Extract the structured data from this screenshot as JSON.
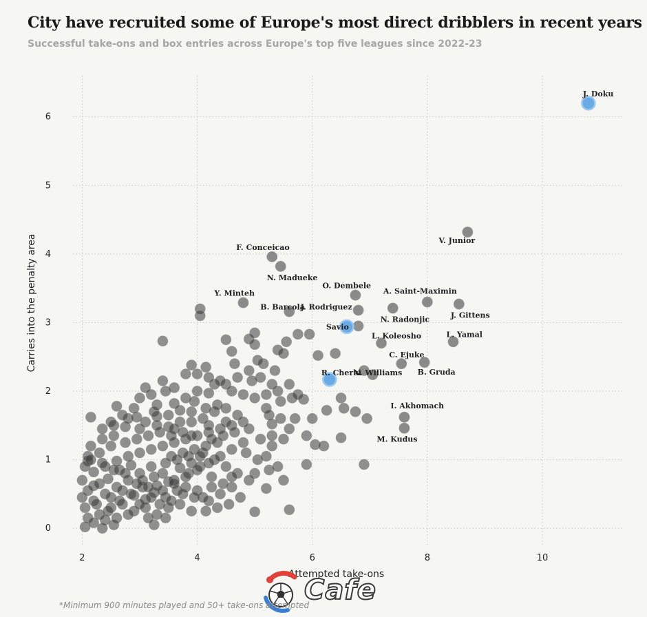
{
  "chart_data": {
    "type": "scatter",
    "title": "City have recruited some of Europe's most direct dribblers in recent years",
    "subtitle": "Successful take-ons and box entries across Europe's top five leagues since 2022-23",
    "xlabel": "Attempted take-ons",
    "ylabel": "Carries into the penalty area",
    "xlim": [
      1.6,
      11.4
    ],
    "ylim": [
      -0.25,
      6.6
    ],
    "x_ticks": [
      "2",
      "4",
      "6",
      "8",
      "10"
    ],
    "x_tick_values": [
      2,
      4,
      6,
      8,
      10
    ],
    "y_ticks": [
      "0",
      "1",
      "2",
      "3",
      "4",
      "5",
      "6"
    ],
    "y_tick_values": [
      0,
      1,
      2,
      3,
      4,
      5,
      6
    ],
    "grid": "dotted",
    "highlight_color": "#5aa3e3",
    "point_color": "#3a3a3a",
    "labeled_points": [
      {
        "name": "J. Doku",
        "x": 10.8,
        "y": 6.2,
        "highlight": true
      },
      {
        "name": "V. Junior",
        "x": 8.7,
        "y": 4.32,
        "highlight": false
      },
      {
        "name": "F. Conceicao",
        "x": 5.3,
        "y": 3.96,
        "highlight": false
      },
      {
        "name": "N. Madueke",
        "x": 5.45,
        "y": 3.82,
        "highlight": false
      },
      {
        "name": "O. Dembele",
        "x": 6.75,
        "y": 3.4,
        "highlight": false
      },
      {
        "name": "A. Saint-Maximin",
        "x": 8.0,
        "y": 3.3,
        "highlight": false
      },
      {
        "name": "Y. Minteh",
        "x": 4.8,
        "y": 3.29,
        "highlight": false
      },
      {
        "name": "B. Barcola",
        "x": 5.6,
        "y": 3.16,
        "highlight": false
      },
      {
        "name": "J. Gittens",
        "x": 8.55,
        "y": 3.27,
        "highlight": false
      },
      {
        "name": "N. Radonjic",
        "x": 7.4,
        "y": 3.21,
        "highlight": false
      },
      {
        "name": "J. Rodriguez",
        "x": 6.8,
        "y": 3.18,
        "highlight": false
      },
      {
        "name": "Savio",
        "x": 6.6,
        "y": 2.94,
        "highlight": true
      },
      {
        "name": "L. Koleosho",
        "x": 7.2,
        "y": 2.7,
        "highlight": false
      },
      {
        "name": "L. Yamal",
        "x": 8.45,
        "y": 2.72,
        "highlight": false
      },
      {
        "name": "C. Ejuke",
        "x": 7.55,
        "y": 2.4,
        "highlight": false
      },
      {
        "name": "B. Gruda",
        "x": 7.95,
        "y": 2.42,
        "highlight": false
      },
      {
        "name": "R. Cherki",
        "x": 6.3,
        "y": 2.17,
        "highlight": true
      },
      {
        "name": "N. Williams",
        "x": 7.05,
        "y": 2.24,
        "highlight": false
      },
      {
        "name": "I. Akhomach",
        "x": 7.6,
        "y": 1.62,
        "highlight": false
      },
      {
        "name": "M. Kudus",
        "x": 7.6,
        "y": 1.46,
        "highlight": false
      }
    ],
    "other_points": [
      [
        4.05,
        3.2
      ],
      [
        4.05,
        3.1
      ],
      [
        3.4,
        2.73
      ],
      [
        5.0,
        2.85
      ],
      [
        4.5,
        2.75
      ],
      [
        5.4,
        2.6
      ],
      [
        4.9,
        2.76
      ],
      [
        5.15,
        2.4
      ],
      [
        4.65,
        2.4
      ],
      [
        4.15,
        2.35
      ],
      [
        3.9,
        2.38
      ],
      [
        4.6,
        2.58
      ],
      [
        5.0,
        2.68
      ],
      [
        5.55,
        2.72
      ],
      [
        5.75,
        2.83
      ],
      [
        5.95,
        2.83
      ],
      [
        5.05,
        2.45
      ],
      [
        5.5,
        2.55
      ],
      [
        6.1,
        2.52
      ],
      [
        6.4,
        2.55
      ],
      [
        6.8,
        2.95
      ],
      [
        6.9,
        2.3
      ],
      [
        6.55,
        1.75
      ],
      [
        6.0,
        1.6
      ],
      [
        6.25,
        1.72
      ],
      [
        6.5,
        1.9
      ],
      [
        6.75,
        1.7
      ],
      [
        6.05,
        1.22
      ],
      [
        6.2,
        1.2
      ],
      [
        6.5,
        1.32
      ],
      [
        6.95,
        1.6
      ],
      [
        6.9,
        0.93
      ],
      [
        5.9,
        0.93
      ],
      [
        5.85,
        1.88
      ],
      [
        5.9,
        1.35
      ],
      [
        5.7,
        1.6
      ],
      [
        5.6,
        1.45
      ],
      [
        5.45,
        1.85
      ],
      [
        5.2,
        1.75
      ],
      [
        5.3,
        1.52
      ],
      [
        5.5,
        1.3
      ],
      [
        5.3,
        1.2
      ],
      [
        5.2,
        1.05
      ],
      [
        5.4,
        0.9
      ],
      [
        5.5,
        0.7
      ],
      [
        5.2,
        0.58
      ],
      [
        5.0,
        0.8
      ],
      [
        5.0,
        0.24
      ],
      [
        5.6,
        0.27
      ],
      [
        4.9,
        2.3
      ],
      [
        4.7,
        2.2
      ],
      [
        4.5,
        2.1
      ],
      [
        4.3,
        2.1
      ],
      [
        4.2,
        1.97
      ],
      [
        4.0,
        2.0
      ],
      [
        3.8,
        1.9
      ],
      [
        3.6,
        1.82
      ],
      [
        3.9,
        1.7
      ],
      [
        3.7,
        1.55
      ],
      [
        3.5,
        1.48
      ],
      [
        3.3,
        1.63
      ],
      [
        3.1,
        1.55
      ],
      [
        2.95,
        1.62
      ],
      [
        2.75,
        1.48
      ],
      [
        2.55,
        1.5
      ],
      [
        2.35,
        1.45
      ],
      [
        2.15,
        1.62
      ],
      [
        2.5,
        1.2
      ],
      [
        2.3,
        1.1
      ],
      [
        2.1,
        0.98
      ],
      [
        2.2,
        0.82
      ],
      [
        2.4,
        0.9
      ],
      [
        2.6,
        0.98
      ],
      [
        2.8,
        1.05
      ],
      [
        3.0,
        1.1
      ],
      [
        3.2,
        1.15
      ],
      [
        3.4,
        1.2
      ],
      [
        3.6,
        1.25
      ],
      [
        3.8,
        1.3
      ],
      [
        4.0,
        1.35
      ],
      [
        4.2,
        1.4
      ],
      [
        4.4,
        1.45
      ],
      [
        4.6,
        1.5
      ],
      [
        4.8,
        1.55
      ],
      [
        4.1,
        1.1
      ],
      [
        4.3,
        1.0
      ],
      [
        4.5,
        0.9
      ],
      [
        4.7,
        0.8
      ],
      [
        4.9,
        0.7
      ],
      [
        4.6,
        0.6
      ],
      [
        4.4,
        0.5
      ],
      [
        4.2,
        0.4
      ],
      [
        4.0,
        0.55
      ],
      [
        3.8,
        0.6
      ],
      [
        3.6,
        0.7
      ],
      [
        3.4,
        0.8
      ],
      [
        3.2,
        0.9
      ],
      [
        3.0,
        0.8
      ],
      [
        2.8,
        0.7
      ],
      [
        2.6,
        0.6
      ],
      [
        2.4,
        0.5
      ],
      [
        2.2,
        0.4
      ],
      [
        2.05,
        0.3
      ],
      [
        2.1,
        0.15
      ],
      [
        2.05,
        0.02
      ],
      [
        2.3,
        0.2
      ],
      [
        2.5,
        0.3
      ],
      [
        2.7,
        0.35
      ],
      [
        2.9,
        0.25
      ],
      [
        3.1,
        0.3
      ],
      [
        3.3,
        0.2
      ],
      [
        3.25,
        0.05
      ],
      [
        3.5,
        0.3
      ],
      [
        3.7,
        0.35
      ],
      [
        3.9,
        0.25
      ],
      [
        4.1,
        0.45
      ],
      [
        2.2,
        0.62
      ],
      [
        2.45,
        0.72
      ],
      [
        2.65,
        0.85
      ],
      [
        2.85,
        0.92
      ],
      [
        3.05,
        0.6
      ],
      [
        3.25,
        0.52
      ],
      [
        3.45,
        0.45
      ],
      [
        3.65,
        0.55
      ],
      [
        3.85,
        0.8
      ],
      [
        4.05,
        0.9
      ],
      [
        4.25,
        0.75
      ],
      [
        4.45,
        0.65
      ],
      [
        2.15,
        1.2
      ],
      [
        2.35,
        1.3
      ],
      [
        2.55,
        1.35
      ],
      [
        2.75,
        1.25
      ],
      [
        2.95,
        1.3
      ],
      [
        3.15,
        1.35
      ],
      [
        3.35,
        1.4
      ],
      [
        3.55,
        1.05
      ],
      [
        3.75,
        1.1
      ],
      [
        3.95,
        1.15
      ],
      [
        4.15,
        1.2
      ],
      [
        4.35,
        1.25
      ],
      [
        2.1,
        0.55
      ],
      [
        2.3,
        0.65
      ],
      [
        2.5,
        0.45
      ],
      [
        2.7,
        0.55
      ],
      [
        2.9,
        0.48
      ],
      [
        3.1,
        0.42
      ],
      [
        3.3,
        0.62
      ],
      [
        3.5,
        0.68
      ],
      [
        3.7,
        0.88
      ],
      [
        3.9,
        0.95
      ],
      [
        2.6,
        1.78
      ],
      [
        2.8,
        1.6
      ],
      [
        3.0,
        1.9
      ],
      [
        3.2,
        1.95
      ],
      [
        3.4,
        2.15
      ],
      [
        3.6,
        2.05
      ],
      [
        3.8,
        2.25
      ],
      [
        4.0,
        2.25
      ],
      [
        4.2,
        2.2
      ],
      [
        4.4,
        2.15
      ],
      [
        4.6,
        2.0
      ],
      [
        4.8,
        1.95
      ],
      [
        5.0,
        1.9
      ],
      [
        5.2,
        1.95
      ],
      [
        5.4,
        2.0
      ],
      [
        5.6,
        2.1
      ],
      [
        3.1,
        2.05
      ],
      [
        3.3,
        1.8
      ],
      [
        3.5,
        1.65
      ],
      [
        3.7,
        1.72
      ],
      [
        3.9,
        1.55
      ],
      [
        4.1,
        1.6
      ],
      [
        4.3,
        1.7
      ],
      [
        4.5,
        1.75
      ],
      [
        4.7,
        1.65
      ],
      [
        4.9,
        1.45
      ],
      [
        5.1,
        1.3
      ],
      [
        5.3,
        1.35
      ],
      [
        4.8,
        1.25
      ],
      [
        4.6,
        1.15
      ],
      [
        4.4,
        1.05
      ],
      [
        4.2,
        0.95
      ],
      [
        4.0,
        0.85
      ],
      [
        3.8,
        0.75
      ],
      [
        3.6,
        0.65
      ],
      [
        3.4,
        0.55
      ],
      [
        3.2,
        0.45
      ],
      [
        3.0,
        0.35
      ],
      [
        2.8,
        0.2
      ],
      [
        2.6,
        0.15
      ],
      [
        2.4,
        0.12
      ],
      [
        2.2,
        0.08
      ],
      [
        2.0,
        0.45
      ],
      [
        2.0,
        0.7
      ],
      [
        2.05,
        0.9
      ],
      [
        2.1,
        1.05
      ],
      [
        2.25,
        0.35
      ],
      [
        2.45,
        0.25
      ],
      [
        2.65,
        0.4
      ],
      [
        2.85,
        0.5
      ],
      [
        3.05,
        0.7
      ],
      [
        3.25,
        0.75
      ],
      [
        3.45,
        0.95
      ],
      [
        3.65,
        1.0
      ],
      [
        3.85,
        1.05
      ],
      [
        4.05,
        1.05
      ],
      [
        4.25,
        1.3
      ],
      [
        4.45,
        1.35
      ],
      [
        4.65,
        1.4
      ],
      [
        4.85,
        1.1
      ],
      [
        5.05,
        1.0
      ],
      [
        5.25,
        0.85
      ],
      [
        4.75,
        0.45
      ],
      [
        4.55,
        0.35
      ],
      [
        4.35,
        0.3
      ],
      [
        4.15,
        0.25
      ],
      [
        3.95,
        0.45
      ],
      [
        3.75,
        0.5
      ],
      [
        3.55,
        0.4
      ],
      [
        3.35,
        0.35
      ],
      [
        3.15,
        0.6
      ],
      [
        2.95,
        0.65
      ],
      [
        2.75,
        0.8
      ],
      [
        2.55,
        0.85
      ],
      [
        2.35,
        0.95
      ],
      [
        2.15,
        1.0
      ],
      [
        3.0,
        1.45
      ],
      [
        3.3,
        1.5
      ],
      [
        3.6,
        1.45
      ],
      [
        3.9,
        1.35
      ],
      [
        4.2,
        1.5
      ],
      [
        4.5,
        1.55
      ],
      [
        5.3,
        2.1
      ],
      [
        5.1,
        2.2
      ],
      [
        4.95,
        2.15
      ],
      [
        5.35,
        2.3
      ],
      [
        5.45,
        1.6
      ],
      [
        5.65,
        1.9
      ],
      [
        5.75,
        1.95
      ],
      [
        5.25,
        1.65
      ],
      [
        4.35,
        1.8
      ],
      [
        4.15,
        1.75
      ],
      [
        3.95,
        1.85
      ],
      [
        3.45,
        2.0
      ],
      [
        3.25,
        1.7
      ],
      [
        2.9,
        1.75
      ],
      [
        2.7,
        1.65
      ],
      [
        2.5,
        1.55
      ],
      [
        3.55,
        1.35
      ],
      [
        3.75,
        1.4
      ],
      [
        4.25,
        0.6
      ],
      [
        4.6,
        0.75
      ],
      [
        3.15,
        0.15
      ],
      [
        3.45,
        0.15
      ],
      [
        2.55,
        0.05
      ],
      [
        2.35,
        0.0
      ]
    ]
  },
  "footnote": "*Minimum 900 minutes played and 50+ take-ons attempted",
  "watermark": "Cafe"
}
